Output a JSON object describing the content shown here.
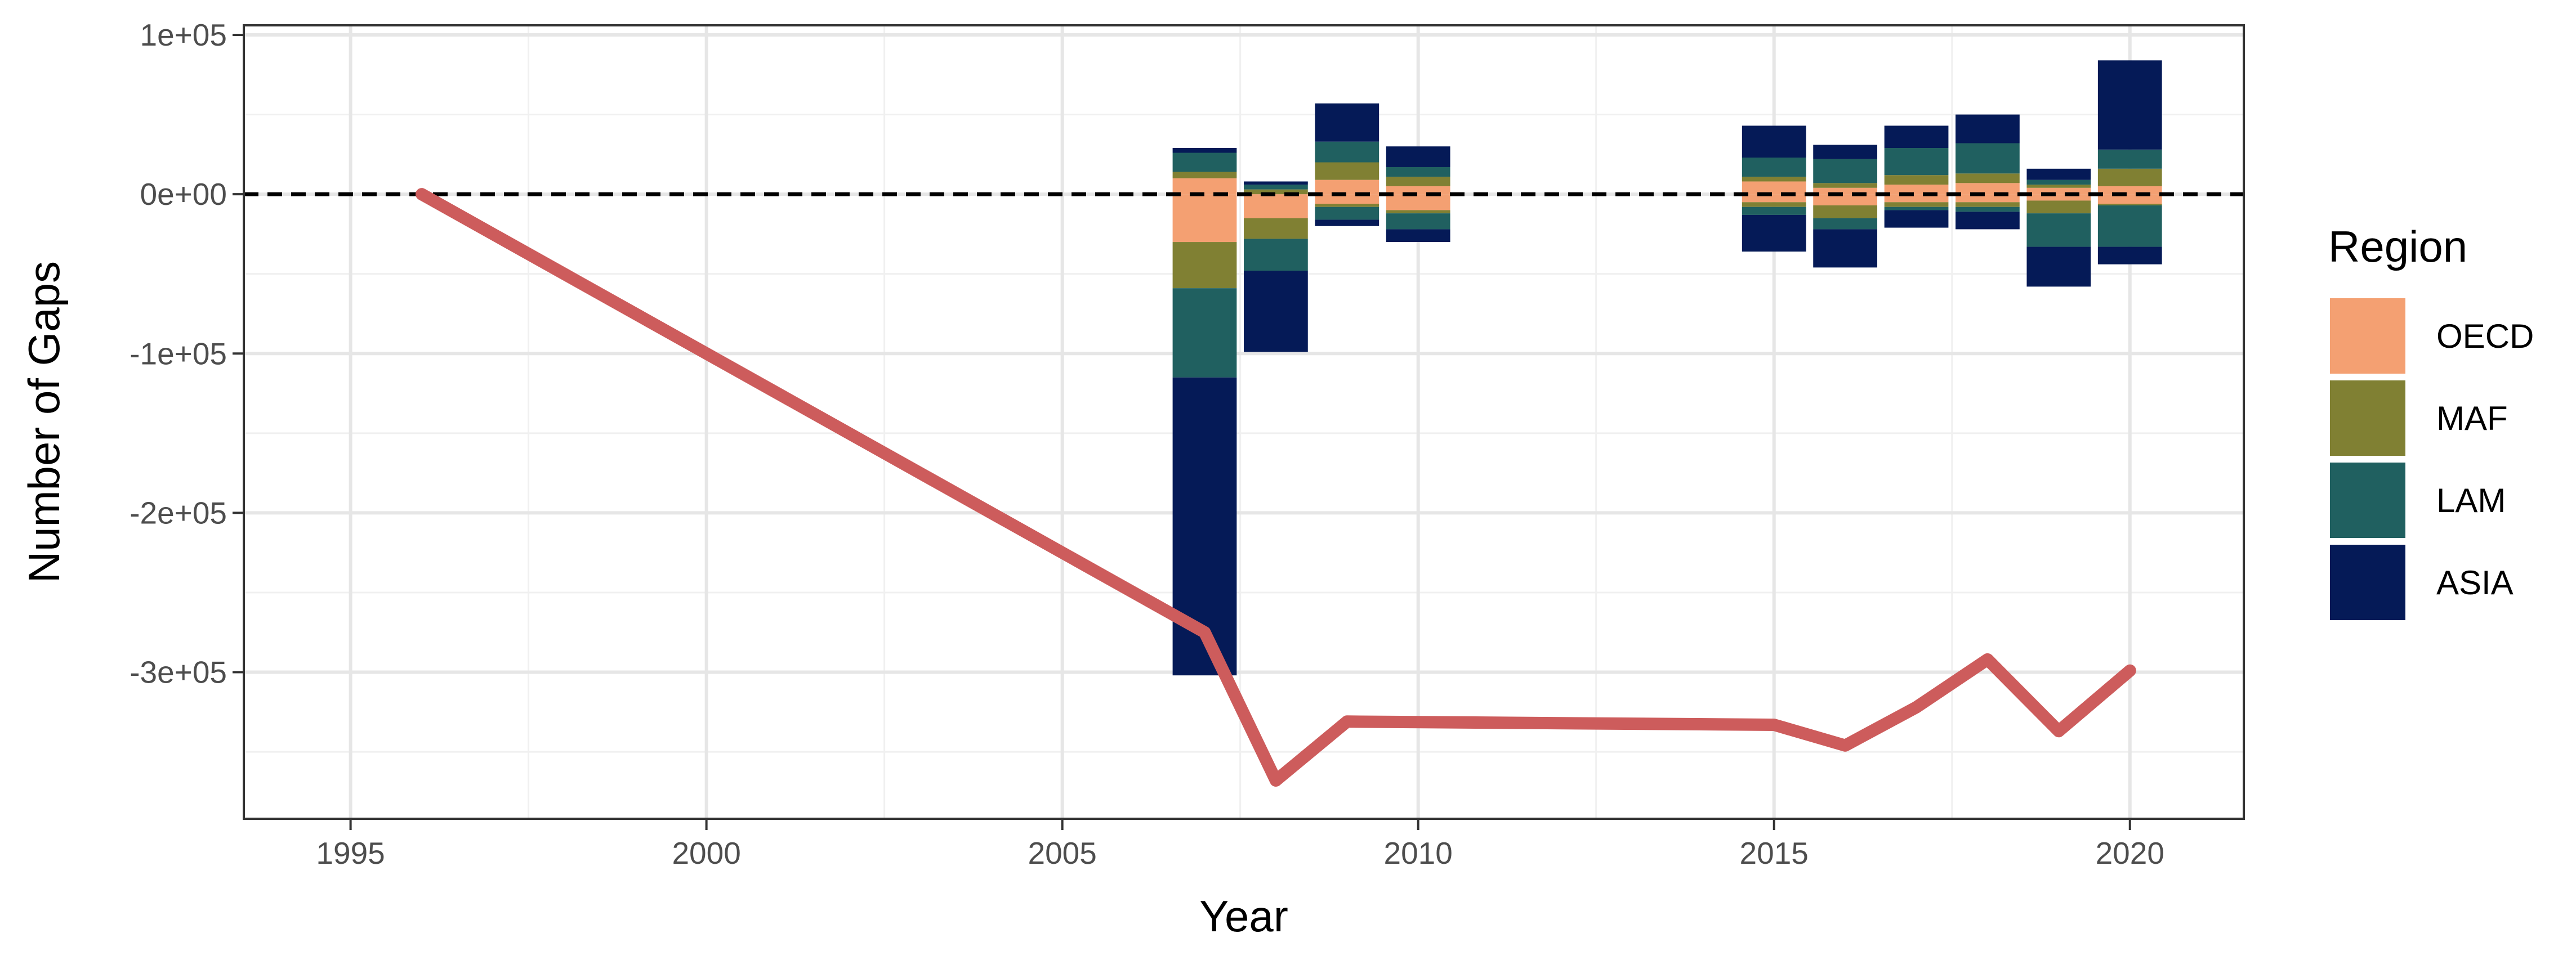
{
  "chart_data": {
    "type": "bar",
    "title": "",
    "xlabel": "Year",
    "ylabel": "Number of Gaps",
    "xlim": [
      1993.5,
      2021.6
    ],
    "ylim": [
      -392000,
      106000
    ],
    "x_ticks": [
      1995,
      2000,
      2005,
      2010,
      2015,
      2020
    ],
    "x_tick_labels": [
      "1995",
      "2000",
      "2005",
      "2010",
      "2015",
      "2020"
    ],
    "y_ticks": [
      100000,
      0,
      -100000,
      -200000,
      -300000
    ],
    "y_tick_labels": [
      "1e+05",
      "0e+00",
      "-1e+05",
      "-2e+05",
      "-3e+05"
    ],
    "grid": true,
    "reference_line": {
      "y": 0,
      "style": "dashed",
      "color": "#000000"
    },
    "legend": {
      "title": "Region",
      "placement": "right"
    },
    "stack_order": [
      "OECD",
      "MAF",
      "LAM",
      "ASIA"
    ],
    "categories": [
      2007,
      2008,
      2009,
      2010,
      2015,
      2016,
      2017,
      2018,
      2019,
      2020
    ],
    "series": [
      {
        "name": "OECD",
        "color": "#F4A072",
        "positive": [
          10000,
          0,
          9000,
          5000,
          8000,
          4000,
          6000,
          7000,
          4000,
          5000
        ],
        "negative": [
          -30000,
          -15000,
          -6000,
          -10000,
          -5000,
          -7000,
          -5000,
          -5000,
          -4000,
          -6000
        ]
      },
      {
        "name": "MAF",
        "color": "#808033",
        "positive": [
          4000,
          3000,
          11000,
          6000,
          3000,
          3000,
          6000,
          6000,
          2000,
          11000
        ],
        "negative": [
          -29000,
          -13000,
          -2000,
          -2000,
          -3000,
          -8000,
          -3000,
          -3000,
          -8000,
          -1000
        ]
      },
      {
        "name": "LAM",
        "color": "#206060",
        "positive": [
          12000,
          3000,
          13000,
          6000,
          12000,
          15000,
          17000,
          19000,
          3000,
          12000
        ],
        "negative": [
          -56000,
          -20000,
          -8000,
          -10000,
          -5000,
          -7000,
          -2000,
          -3000,
          -21000,
          -26000
        ]
      },
      {
        "name": "ASIA",
        "color": "#051A57",
        "positive": [
          3000,
          2000,
          24000,
          13000,
          20000,
          9000,
          14000,
          18000,
          7000,
          56000
        ],
        "negative": [
          -187000,
          -51000,
          -4000,
          -8000,
          -23000,
          -24000,
          -11000,
          -11000,
          -25000,
          -11000
        ]
      }
    ],
    "line_series": {
      "color": "#CD5C5C",
      "x": [
        1996,
        2007,
        2008,
        2009,
        2015,
        2016,
        2017,
        2018,
        2019,
        2020
      ],
      "y": [
        0,
        -275000,
        -368000,
        -331000,
        -333000,
        -346000,
        -322000,
        -292000,
        -337000,
        -299000
      ]
    }
  }
}
